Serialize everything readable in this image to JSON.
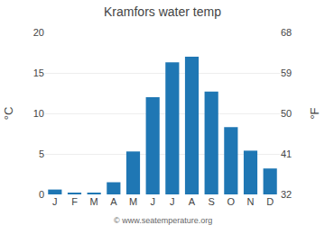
{
  "chart_data": {
    "type": "bar",
    "title": "Kramfors water temp",
    "categories": [
      "J",
      "F",
      "M",
      "A",
      "M",
      "J",
      "J",
      "A",
      "S",
      "O",
      "N",
      "D"
    ],
    "values": [
      0.6,
      0.2,
      0.2,
      1.5,
      5.3,
      12.0,
      16.3,
      17.0,
      12.7,
      8.3,
      5.4,
      3.2
    ],
    "ylabel": "°C",
    "y2label": "°F",
    "ylim": [
      0,
      20
    ],
    "yticks": [
      0,
      5,
      10,
      15,
      20
    ],
    "y2lim": [
      32,
      68
    ],
    "y2ticks": [
      32,
      41,
      50,
      59,
      68
    ],
    "grid": true,
    "annotations": [
      "© www.seatemperature.org"
    ]
  }
}
